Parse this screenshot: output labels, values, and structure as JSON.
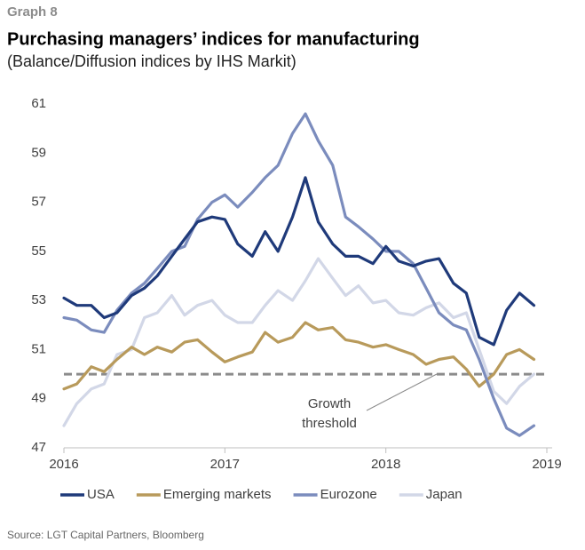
{
  "chart_data": {
    "type": "line",
    "label": "Graph 8",
    "title": "Purchasing managers’ indices for manufacturing",
    "subtitle": "(Balance/Diffusion indices by IHS Markit)",
    "source": "Source: LGT Capital Partners, Bloomberg",
    "x": [
      2016,
      2016.08,
      2016.17,
      2016.25,
      2016.33,
      2016.42,
      2016.5,
      2016.58,
      2016.67,
      2016.75,
      2016.83,
      2016.92,
      2017,
      2017.08,
      2017.17,
      2017.25,
      2017.33,
      2017.42,
      2017.5,
      2017.58,
      2017.67,
      2017.75,
      2017.83,
      2017.92,
      2018,
      2018.08,
      2018.17,
      2018.25,
      2018.33,
      2018.42,
      2018.5,
      2018.58,
      2018.67,
      2018.75,
      2018.83,
      2018.92
    ],
    "xlim": [
      2016,
      2019
    ],
    "xticks": [
      2016,
      2017,
      2018,
      2019
    ],
    "ylim": [
      47,
      61
    ],
    "yticks": [
      47,
      49,
      51,
      53,
      55,
      57,
      59,
      61
    ],
    "threshold": {
      "value": 50,
      "label": [
        "Growth",
        "threshold"
      ]
    },
    "series": [
      {
        "name": "USA",
        "color": "#1f3a7a",
        "values": [
          53.1,
          52.8,
          52.8,
          52.3,
          52.5,
          53.2,
          53.5,
          54.0,
          54.8,
          55.5,
          56.2,
          56.4,
          56.3,
          55.3,
          54.8,
          55.8,
          55.0,
          56.4,
          58.0,
          56.2,
          55.3,
          54.8,
          54.8,
          54.5,
          55.2,
          54.6,
          54.4,
          54.6,
          54.7,
          53.7,
          53.3,
          51.5,
          51.2,
          52.6,
          53.3,
          52.8
        ]
      },
      {
        "name": "Emerging markets",
        "color": "#b89a5b",
        "values": [
          49.4,
          49.6,
          50.3,
          50.1,
          50.6,
          51.1,
          50.8,
          51.1,
          50.9,
          51.3,
          51.4,
          50.9,
          50.5,
          50.7,
          50.9,
          51.7,
          51.3,
          51.5,
          52.1,
          51.8,
          51.9,
          51.4,
          51.3,
          51.1,
          51.2,
          51.0,
          50.8,
          50.4,
          50.6,
          50.7,
          50.2,
          49.5,
          50.0,
          50.8,
          51.0,
          50.6
        ]
      },
      {
        "name": "Eurozone",
        "color": "#7b8cbd",
        "values": [
          52.3,
          52.2,
          51.8,
          51.7,
          52.6,
          53.3,
          53.7,
          54.3,
          55.0,
          55.2,
          56.3,
          57.0,
          57.3,
          56.8,
          57.4,
          58.0,
          58.5,
          59.8,
          60.6,
          59.5,
          58.5,
          56.4,
          56.0,
          55.5,
          55.0,
          55.0,
          54.5,
          53.5,
          52.5,
          52.0,
          51.8,
          50.6,
          49.0,
          47.8,
          47.5,
          47.9
        ]
      },
      {
        "name": "Japan",
        "color": "#d2d7e7",
        "values": [
          47.9,
          48.8,
          49.4,
          49.6,
          50.8,
          51.0,
          52.3,
          52.5,
          53.2,
          52.4,
          52.8,
          53.0,
          52.4,
          52.1,
          52.1,
          52.8,
          53.4,
          53.0,
          53.8,
          54.7,
          53.9,
          53.2,
          53.6,
          52.9,
          53.0,
          52.5,
          52.4,
          52.7,
          52.9,
          52.3,
          52.5,
          51.0,
          49.3,
          48.8,
          49.5,
          50.0
        ]
      }
    ]
  }
}
